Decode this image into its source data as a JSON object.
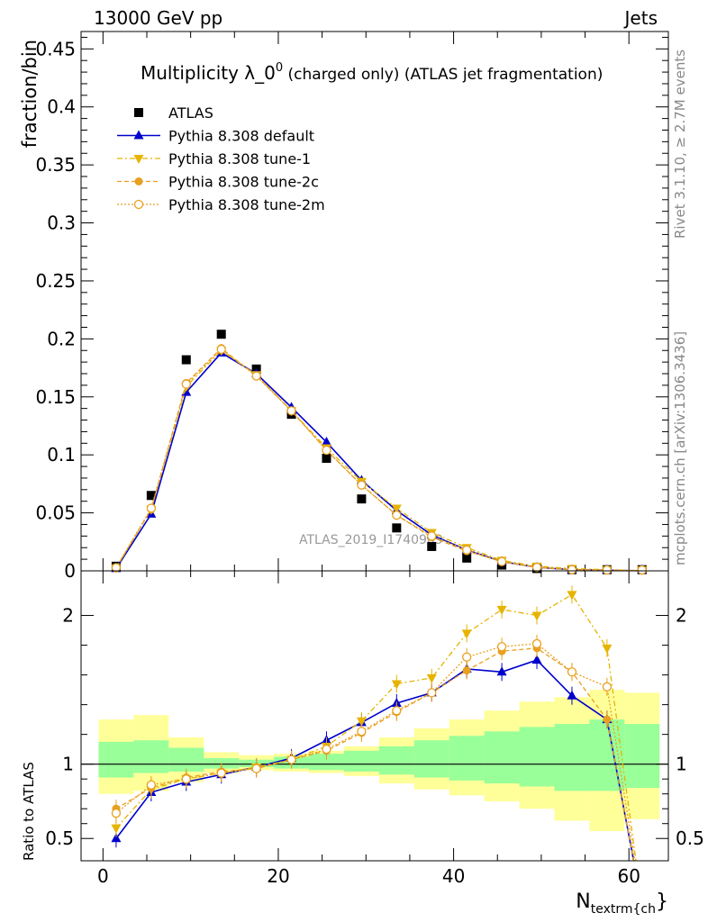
{
  "header": {
    "left": "13000 GeV pp",
    "right": "Jets"
  },
  "side_labels": {
    "rivet": "Rivet 3.1.10, ≥ 2.7M events",
    "mcplots": "mcplots.cern.ch [arXiv:1306.3436]"
  },
  "watermark": "ATLAS_2019_I1740909",
  "title": {
    "main": "Multiplicity λ_0",
    "sup": "0",
    "rest": " (charged only) (ATLAS jet fragmentation)"
  },
  "xlabel_main": "N",
  "xlabel_sub": "textrm{ch",
  "xlabel_close": "}",
  "colors": {
    "atlas": "#000000",
    "default": "#0000cc",
    "tune1": "#e6b400",
    "tune2c": "#e8a020",
    "tune2m": "#e8a020",
    "band_inner": "#99ff99",
    "band_outer": "#ffff99"
  },
  "chart_data": [
    {
      "type": "scatter",
      "ylabel": "fraction/bin",
      "xlim": [
        -2.5,
        64.5
      ],
      "ylim": [
        0,
        0.465
      ],
      "y_ticks": [
        "0",
        "0.05",
        "0.1",
        "0.15",
        "0.2",
        "0.25",
        "0.3",
        "0.35",
        "0.4",
        "0.45"
      ],
      "x": [
        1.5,
        5.5,
        9.5,
        13.5,
        17.5,
        21.5,
        25.5,
        29.5,
        33.5,
        37.5,
        41.5,
        45.5,
        49.5,
        53.5,
        57.5,
        61.5
      ],
      "series": [
        {
          "name": "ATLAS",
          "key": "atlas",
          "values": [
            0.004,
            0.065,
            0.182,
            0.204,
            0.174,
            0.135,
            0.097,
            0.062,
            0.037,
            0.021,
            0.011,
            0.005,
            0.002,
            0.001,
            0.001,
            0.001
          ]
        },
        {
          "name": "Pythia 8.308 default",
          "key": "default",
          "values": [
            0.002,
            0.049,
            0.154,
            0.188,
            0.17,
            0.141,
            0.111,
            0.078,
            0.052,
            0.031,
            0.018,
            0.008,
            0.003,
            0.001,
            0.0005,
            0.0001
          ]
        },
        {
          "name": "Pythia 8.308 tune-1",
          "key": "tune1",
          "values": [
            0.0025,
            0.053,
            0.159,
            0.19,
            0.169,
            0.138,
            0.106,
            0.077,
            0.054,
            0.033,
            0.02,
            0.009,
            0.004,
            0.002,
            0.001,
            0.0002
          ]
        },
        {
          "name": "Pythia 8.308 tune-2c",
          "key": "tune2c",
          "values": [
            0.0028,
            0.053,
            0.162,
            0.192,
            0.168,
            0.138,
            0.104,
            0.074,
            0.048,
            0.029,
            0.017,
            0.008,
            0.003,
            0.001,
            0.0005,
            0.0001
          ]
        },
        {
          "name": "Pythia 8.308 tune-2m",
          "key": "tune2m",
          "values": [
            0.0027,
            0.054,
            0.161,
            0.191,
            0.168,
            0.138,
            0.104,
            0.074,
            0.048,
            0.03,
            0.018,
            0.008,
            0.003,
            0.001,
            0.0005,
            0.0001
          ]
        }
      ]
    },
    {
      "type": "line",
      "ylabel": "Ratio to ATLAS",
      "xlabel": "N_textrm{ch}",
      "xlim": [
        -2.5,
        64.5
      ],
      "ylim": [
        0.35,
        2.3
      ],
      "y_ticks": [
        "0.5",
        "1",
        "2"
      ],
      "x_ticks": [
        "0",
        "20",
        "40",
        "60"
      ],
      "x_tick_values": [
        0,
        20,
        40,
        60
      ],
      "bin_edges": [
        -0.5,
        3.5,
        7.5,
        11.5,
        15.5,
        19.5,
        23.5,
        27.5,
        31.5,
        35.5,
        39.5,
        43.5,
        47.5,
        51.5,
        55.5,
        59.5,
        63.5
      ],
      "band_inner": [
        [
          0.91,
          1.15
        ],
        [
          0.94,
          1.16
        ],
        [
          0.95,
          1.11
        ],
        [
          0.97,
          1.04
        ],
        [
          0.98,
          1.03
        ],
        [
          0.97,
          1.05
        ],
        [
          0.96,
          1.07
        ],
        [
          0.95,
          1.09
        ],
        [
          0.93,
          1.12
        ],
        [
          0.91,
          1.16
        ],
        [
          0.89,
          1.19
        ],
        [
          0.87,
          1.22
        ],
        [
          0.85,
          1.25
        ],
        [
          0.82,
          1.27
        ],
        [
          0.82,
          1.3
        ],
        [
          0.84,
          1.27
        ]
      ],
      "band_outer": [
        [
          0.8,
          1.3
        ],
        [
          0.82,
          1.33
        ],
        [
          0.88,
          1.18
        ],
        [
          0.94,
          1.08
        ],
        [
          0.96,
          1.06
        ],
        [
          0.95,
          1.07
        ],
        [
          0.94,
          1.09
        ],
        [
          0.92,
          1.12
        ],
        [
          0.87,
          1.18
        ],
        [
          0.83,
          1.24
        ],
        [
          0.79,
          1.3
        ],
        [
          0.75,
          1.36
        ],
        [
          0.7,
          1.42
        ],
        [
          0.62,
          1.45
        ],
        [
          0.55,
          1.5
        ],
        [
          0.63,
          1.48
        ]
      ],
      "x": [
        1.5,
        5.5,
        9.5,
        13.5,
        17.5,
        21.5,
        25.5,
        29.5,
        33.5,
        37.5,
        41.5,
        45.5,
        49.5,
        53.5,
        57.5,
        61.5
      ],
      "series": [
        {
          "name": "Pythia 8.308 default",
          "key": "default",
          "values": [
            0.5,
            0.81,
            0.88,
            0.93,
            0.98,
            1.04,
            1.16,
            1.28,
            1.41,
            1.48,
            1.64,
            1.62,
            1.7,
            1.46,
            1.3,
            0.05
          ]
        },
        {
          "name": "Pythia 8.308 tune-1",
          "key": "tune1",
          "values": [
            0.57,
            0.83,
            0.9,
            0.94,
            0.98,
            1.03,
            1.12,
            1.29,
            1.54,
            1.58,
            1.88,
            2.04,
            2.0,
            2.14,
            1.78,
            0.05
          ]
        },
        {
          "name": "Pythia 8.308 tune-2c",
          "key": "tune2c",
          "values": [
            0.7,
            0.84,
            0.91,
            0.95,
            0.97,
            1.03,
            1.09,
            1.21,
            1.35,
            1.48,
            1.63,
            1.76,
            1.78,
            1.62,
            1.3,
            0.05
          ]
        },
        {
          "name": "Pythia 8.308 tune-2m",
          "key": "tune2m",
          "values": [
            0.67,
            0.86,
            0.9,
            0.94,
            0.97,
            1.03,
            1.1,
            1.22,
            1.36,
            1.48,
            1.72,
            1.79,
            1.81,
            1.62,
            1.52,
            0.05
          ]
        }
      ]
    }
  ]
}
